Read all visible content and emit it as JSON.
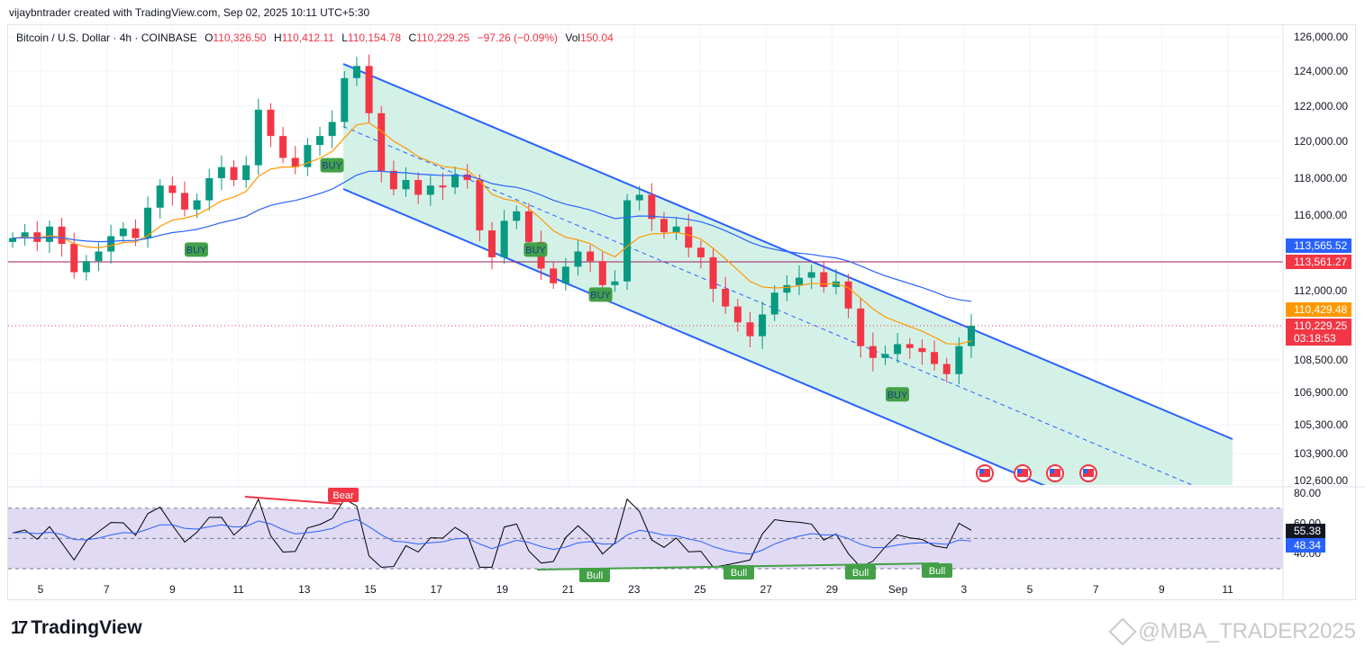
{
  "header": {
    "credit": "vijaybntrader created with TradingView.com, Sep 02, 2025 10:11 UTC+5:30",
    "symbol": "Bitcoin / U.S. Dollar · 4h · COINBASE",
    "open_label": "O",
    "open": "110,326.50",
    "high_label": "H",
    "high": "110,412.11",
    "low_label": "L",
    "low": "110,154.78",
    "close_label": "C",
    "close": "110,229.25",
    "change": "−97.26 (−0.09%)",
    "vol_label": "Vol",
    "vol": "150.04"
  },
  "colors": {
    "up": "#089981",
    "down": "#f23645",
    "channel": "#2962ff",
    "channel_fill": "#cdeee4",
    "ema_fast": "#ff9800",
    "ema_slow": "#2962ff",
    "level_line": "#9c1e5b",
    "rsi_line": "#000000",
    "rsi_ma": "#2962ff",
    "rsi_band": "#d6cdf0",
    "signal_buy": "#43a047",
    "signal_bear": "#f23645"
  },
  "chart_data": [
    {
      "type": "candlestick",
      "title": "Bitcoin / U.S. Dollar · 4h · COINBASE",
      "x_ticks": [
        "5",
        "7",
        "9",
        "11",
        "13",
        "15",
        "17",
        "19",
        "21",
        "23",
        "25",
        "27",
        "29",
        "Sep",
        "3",
        "5",
        "7",
        "9",
        "11"
      ],
      "y_ticks": [
        "126,000.00",
        "124,000.00",
        "122,000.00",
        "120,000.00",
        "118,000.00",
        "116,000.00",
        "112,000.00",
        "108,500.00",
        "106,900.00",
        "105,300.00",
        "103,900.00",
        "102,600.00"
      ],
      "ylim": [
        102000,
        126800
      ],
      "price_labels": [
        {
          "value": 113565.52,
          "text": "113,565.52",
          "color": "#2962ff"
        },
        {
          "value": 113561.27,
          "text": "113,561.27",
          "color": "#f23645"
        },
        {
          "value": 110429.48,
          "text": "110,429.48",
          "color": "#ff9800"
        },
        {
          "value": 110229.25,
          "text": "110,229.25",
          "countdown": "03:18:53",
          "color": "#f23645"
        }
      ],
      "horizontal_level": 113561.27,
      "signals": [
        {
          "text": "BUY",
          "date_index": 6.5,
          "price": 114200
        },
        {
          "text": "BUY",
          "date_index": 11.3,
          "price": 118700
        },
        {
          "text": "BUY",
          "date_index": 18.5,
          "price": 114200
        },
        {
          "text": "BUY",
          "date_index": 20.8,
          "price": 111800
        },
        {
          "text": "BUY",
          "date_index": 31.3,
          "price": 106800
        }
      ],
      "candles_sample": {
        "description_dates": "Aug 4 – Sep 2, 4h candles",
        "closes": [
          114800,
          115100,
          114600,
          115400,
          114500,
          113000,
          113600,
          114100,
          114900,
          115300,
          114800,
          116400,
          117600,
          117200,
          116300,
          116800,
          118000,
          118600,
          117900,
          118700,
          121800,
          120300,
          119100,
          118600,
          119800,
          120300,
          121100,
          123600,
          124300,
          121600,
          118400,
          117400,
          117900,
          117100,
          117600,
          117500,
          118200,
          117900,
          115200,
          113800,
          115700,
          116200,
          114600,
          113200,
          112400,
          113300,
          114100,
          113600,
          112300,
          112500,
          116800,
          117100,
          115800,
          115100,
          115400,
          114300,
          113800,
          112100,
          111200,
          110400,
          109700,
          110800,
          111900,
          112300,
          112700,
          113000,
          112200,
          112500,
          111100,
          109200,
          108600,
          108800,
          109300,
          109100,
          108900,
          108300,
          107800,
          109200,
          110229
        ]
      }
    },
    {
      "type": "line",
      "title": "RSI",
      "y_ticks": [
        "80.00",
        "60.00",
        "40.00"
      ],
      "ylim": [
        30,
        80
      ],
      "band": [
        30,
        70
      ],
      "value_labels": [
        {
          "text": "55.38",
          "color": "#131722"
        },
        {
          "text": "48.34",
          "color": "#2962ff"
        }
      ],
      "divergences": [
        {
          "text": "Bear"
        },
        {
          "text": "Bull"
        },
        {
          "text": "Bull"
        },
        {
          "text": "Bull"
        },
        {
          "text": "Bull"
        }
      ]
    }
  ],
  "brand": {
    "mark": "17",
    "name": "TradingView"
  },
  "watermark": "@MBA_TRADER2025"
}
